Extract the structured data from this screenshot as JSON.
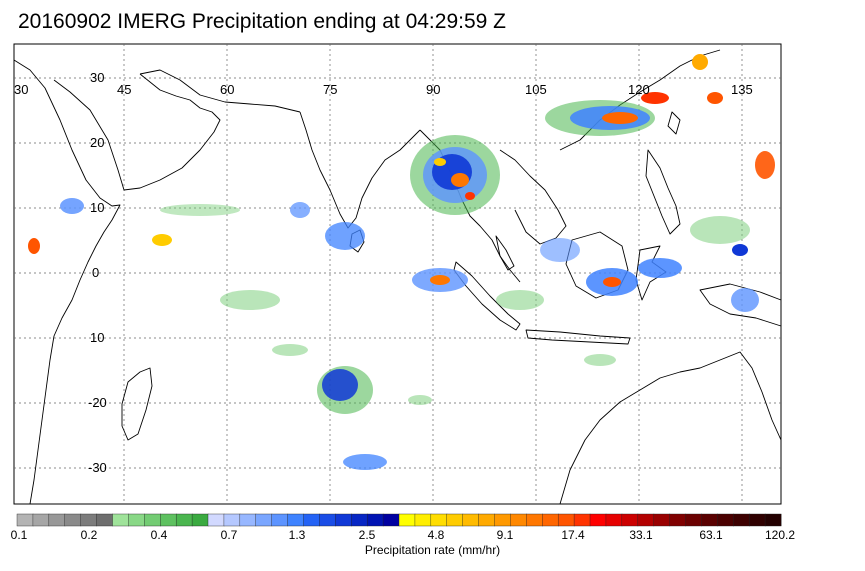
{
  "title": "20160902 IMERG Precipitation ending at 04:29:59 Z",
  "map": {
    "lon_labels": [
      "30",
      "45",
      "60",
      "75",
      "90",
      "105",
      "120",
      "135"
    ],
    "lat_labels": [
      "30",
      "20",
      "10",
      "0",
      "10",
      "-20",
      "-30"
    ]
  },
  "colorbar": {
    "labels": [
      "0.1",
      "0.2",
      "0.4",
      "0.7",
      "1.3",
      "2.5",
      "4.8",
      "9.1",
      "17.4",
      "33.1",
      "63.1",
      "120.2"
    ],
    "caption": "Precipitation rate (mm/hr)",
    "colors": [
      "#b4b4b4",
      "#a6a6a6",
      "#989898",
      "#8a8a8a",
      "#7c7c7c",
      "#6e6e6e",
      "#9fe39a",
      "#89d886",
      "#73cc73",
      "#5ec160",
      "#4bb64f",
      "#3aaa40",
      "#d2d9ff",
      "#b5c8ff",
      "#97b7ff",
      "#7aa6ff",
      "#5d94ff",
      "#3f83ff",
      "#2463f5",
      "#1a4de6",
      "#1038d6",
      "#0726c4",
      "#0014b3",
      "#0000a0",
      "#ffff00",
      "#ffee00",
      "#ffdd00",
      "#ffcc00",
      "#ffbb00",
      "#ffaa00",
      "#ff9900",
      "#ff8800",
      "#ff7700",
      "#ff6600",
      "#ff5500",
      "#ff3300",
      "#ff0000",
      "#e60000",
      "#cc0000",
      "#b30000",
      "#990000",
      "#800000",
      "#6b0000",
      "#5a0000",
      "#4b0000",
      "#3d0000",
      "#300000",
      "#240000"
    ]
  }
}
